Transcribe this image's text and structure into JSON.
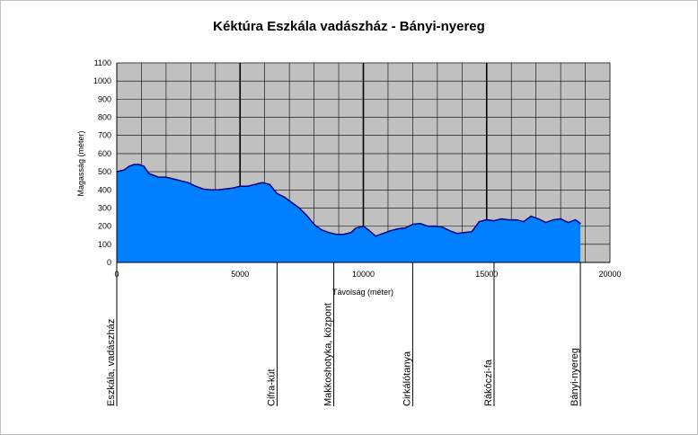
{
  "chart_data": {
    "type": "area",
    "title": "Kéktúra Eszkála vadászház - Bányi-nyereg",
    "xlabel": "Távolság (méter)",
    "ylabel": "Magasság (méter)",
    "xlim": [
      0,
      20000
    ],
    "ylim": [
      0,
      1100
    ],
    "x_ticks": [
      "0",
      "5000",
      "10000",
      "15000",
      "20000"
    ],
    "y_ticks": [
      "0",
      "100",
      "200",
      "300",
      "400",
      "500",
      "600",
      "700",
      "800",
      "900",
      "1000",
      "1100"
    ],
    "grid": true,
    "series": [
      {
        "x": [
          0,
          300,
          500,
          700,
          900,
          1100,
          1300,
          1500,
          1700,
          2000,
          2300,
          2600,
          2900,
          3200,
          3500,
          3800,
          4100,
          4400,
          4700,
          5000,
          5300,
          5600,
          5900,
          6200,
          6500,
          6800,
          7100,
          7400,
          7700,
          8000,
          8300,
          8600,
          8900,
          9200,
          9500,
          9700,
          10000,
          10200,
          10500,
          10800,
          11100,
          11400,
          11700,
          12000,
          12300,
          12600,
          12900,
          13200,
          13500,
          13800,
          14100,
          14400,
          14700,
          15000,
          15300,
          15600,
          15900,
          16200,
          16500,
          16800,
          17100,
          17400,
          17700,
          18000,
          18300,
          18600,
          18800
        ],
        "values": [
          500,
          510,
          530,
          540,
          540,
          530,
          490,
          480,
          470,
          470,
          460,
          450,
          440,
          420,
          405,
          400,
          400,
          405,
          410,
          420,
          420,
          430,
          440,
          430,
          380,
          360,
          330,
          300,
          260,
          210,
          180,
          165,
          155,
          155,
          165,
          190,
          200,
          180,
          145,
          160,
          175,
          185,
          190,
          210,
          215,
          200,
          200,
          195,
          175,
          160,
          165,
          170,
          225,
          235,
          230,
          240,
          235,
          235,
          225,
          255,
          240,
          220,
          235,
          240,
          220,
          235,
          215
        ],
        "color": "#0080ff",
        "line_color": "#000080"
      }
    ],
    "landmarks": [
      {
        "x": 0,
        "label": "Eszkála, vadászház"
      },
      {
        "x": 6500,
        "label": "Cifra-kút"
      },
      {
        "x": 8800,
        "label": "Makkoshotyka, központ"
      },
      {
        "x": 12000,
        "label": "Cirkálótanya"
      },
      {
        "x": 15300,
        "label": "Rákóczi-fa"
      },
      {
        "x": 18800,
        "label": "Bányi-nyereg"
      }
    ]
  }
}
